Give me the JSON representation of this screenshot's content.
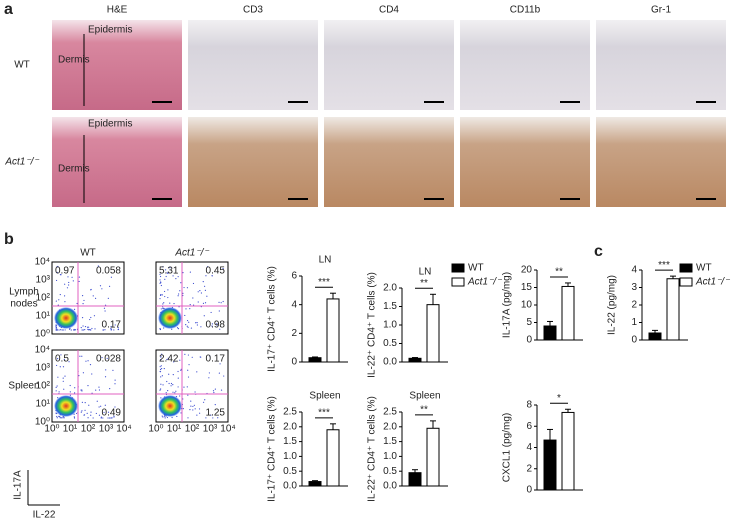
{
  "panel_labels": [
    "a",
    "b",
    "c"
  ],
  "panel_a": {
    "stains": [
      "H&E",
      "CD3",
      "CD4",
      "CD11b",
      "Gr-1"
    ],
    "rows": [
      "WT",
      "Act1⁻/⁻"
    ],
    "annotations": [
      "Epidermis",
      "Dermis"
    ]
  },
  "panel_b": {
    "columns": [
      "WT",
      "Act1⁻/⁻"
    ],
    "rows": [
      [
        "Lymph",
        "nodes"
      ],
      [
        "Spleen"
      ]
    ],
    "quadrants": [
      [
        {
          "upper_left": 0.97,
          "upper_right": 0.058,
          "lower_right": 0.17
        },
        {
          "upper_left": 5.31,
          "upper_right": 0.45,
          "lower_right": 0.98
        }
      ],
      [
        {
          "upper_left": 0.5,
          "upper_right": 0.028,
          "lower_right": 0.49
        },
        {
          "upper_left": 2.42,
          "upper_right": 0.17,
          "lower_right": 1.25
        }
      ]
    ],
    "axis_labels": [
      "IL-17A",
      "IL-22"
    ],
    "log_ticks": [
      "10⁰",
      "10¹",
      "10²",
      "10³",
      "10⁴"
    ]
  },
  "chart_data": [
    {
      "type": "bar",
      "title": "LN",
      "ylabel": "IL-17⁺ CD4⁺ T cells (%)",
      "annotation": "***",
      "ylim": [
        0,
        6
      ],
      "yticks": [
        0,
        2,
        4,
        6
      ],
      "series": [
        {
          "name": "WT",
          "color": "#000000",
          "values": [
            0.3
          ],
          "errors": [
            0.05
          ]
        },
        {
          "name": "Act1⁻/⁻",
          "color": "#ffffff",
          "values": [
            4.4
          ],
          "errors": [
            0.4
          ]
        }
      ]
    },
    {
      "type": "bar",
      "title": "LN",
      "ylabel": "IL-22⁺ CD4⁺ T cells (%)",
      "annotation": "**",
      "ylim": [
        0,
        2
      ],
      "yticks": [
        {
          "value": 0,
          "label": "0.0"
        },
        {
          "value": 0.5,
          "label": "0.5"
        },
        {
          "value": 1,
          "label": "1.0"
        },
        {
          "value": 1.5,
          "label": "1.5"
        },
        {
          "value": 2,
          "label": "2.0"
        }
      ],
      "series": [
        {
          "name": "WT",
          "color": "#000000",
          "values": [
            0.1
          ],
          "errors": [
            0.02
          ]
        },
        {
          "name": "Act1⁻/⁻",
          "color": "#ffffff",
          "values": [
            1.55
          ],
          "errors": [
            0.28
          ]
        }
      ]
    },
    {
      "type": "bar",
      "title": "Spleen",
      "ylabel": "IL-17⁺ CD4⁺ T cells (%)",
      "annotation": "***",
      "ylim": [
        0,
        2.5
      ],
      "yticks": [
        {
          "value": 0,
          "label": "0.0"
        },
        {
          "value": 0.5,
          "label": "0.5"
        },
        {
          "value": 1,
          "label": "1.0"
        },
        {
          "value": 1.5,
          "label": "1.5"
        },
        {
          "value": 2,
          "label": "2.0"
        },
        2.5
      ],
      "series": [
        {
          "name": "WT",
          "color": "#000000",
          "values": [
            0.15
          ],
          "errors": [
            0.03
          ]
        },
        {
          "name": "Act1⁻/⁻",
          "color": "#ffffff",
          "values": [
            1.9
          ],
          "errors": [
            0.2
          ]
        }
      ]
    },
    {
      "type": "bar",
      "title": "Spleen",
      "ylabel": "IL-22⁺ CD4⁺ T cells (%)",
      "annotation": "**",
      "ylim": [
        0,
        2.5
      ],
      "yticks": [
        {
          "value": 0,
          "label": "0.0"
        },
        {
          "value": 0.5,
          "label": "0.5"
        },
        {
          "value": 1,
          "label": "1.0"
        },
        {
          "value": 1.5,
          "label": "1.5"
        },
        {
          "value": 2,
          "label": "2.0"
        },
        2.5
      ],
      "series": [
        {
          "name": "WT",
          "color": "#000000",
          "values": [
            0.45
          ],
          "errors": [
            0.1
          ]
        },
        {
          "name": "Act1⁻/⁻",
          "color": "#ffffff",
          "values": [
            1.95
          ],
          "errors": [
            0.25
          ]
        }
      ]
    },
    {
      "type": "bar",
      "ylabel": "IL-17A (pg/mg)",
      "annotation": "**",
      "ylim": [
        0,
        20
      ],
      "yticks": [
        0,
        5,
        10,
        15,
        20
      ],
      "series": [
        {
          "name": "WT",
          "color": "#000000",
          "values": [
            4
          ],
          "errors": [
            1.3
          ]
        },
        {
          "name": "Act1⁻/⁻",
          "color": "#ffffff",
          "values": [
            15.3
          ],
          "errors": [
            1
          ]
        }
      ]
    },
    {
      "type": "bar",
      "ylabel": "IL-22 (pg/mg)",
      "annotation": "***",
      "ylim": [
        0,
        4
      ],
      "yticks": [
        0,
        1,
        2,
        3,
        4
      ],
      "series": [
        {
          "name": "WT",
          "color": "#000000",
          "values": [
            0.4
          ],
          "errors": [
            0.15
          ]
        },
        {
          "name": "Act1⁻/⁻",
          "color": "#ffffff",
          "values": [
            3.5
          ],
          "errors": [
            0.15
          ]
        }
      ]
    },
    {
      "type": "bar",
      "ylabel": "CXCL1 (pg/mg)",
      "annotation": "*",
      "ylim": [
        0,
        8
      ],
      "yticks": [
        0,
        2,
        4,
        6,
        8
      ],
      "series": [
        {
          "name": "WT",
          "color": "#000000",
          "values": [
            4.7
          ],
          "errors": [
            1
          ]
        },
        {
          "name": "Act1⁻/⁻",
          "color": "#ffffff",
          "values": [
            7.3
          ],
          "errors": [
            0.3
          ]
        }
      ]
    }
  ]
}
